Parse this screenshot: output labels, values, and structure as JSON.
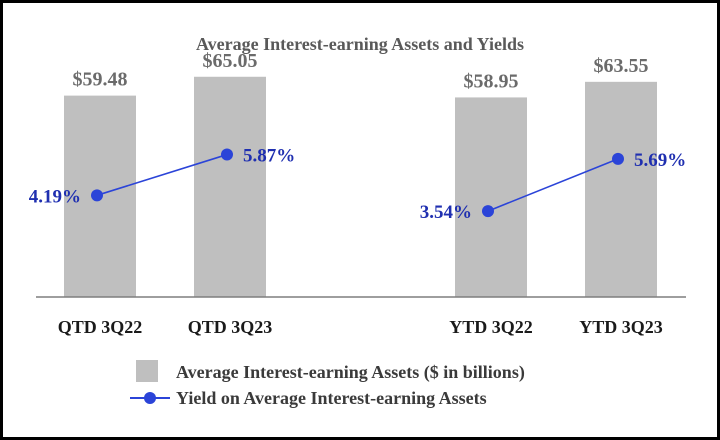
{
  "colors": {
    "bar": "#bfbfbf",
    "line": "#2b44d8",
    "line_text": "#1f2fb0",
    "axis": "#7f7f7f",
    "border": "#000000"
  },
  "chart_data": {
    "type": "bar",
    "title": "Average Interest-earning Assets and Yields",
    "categories": [
      "QTD 3Q22",
      "QTD 3Q23",
      "YTD 3Q22",
      "YTD 3Q23"
    ],
    "groups": [
      "QTD",
      "YTD"
    ],
    "ylim": [
      0,
      70
    ],
    "series": [
      {
        "name": "Average Interest-earning Assets ($ in billions)",
        "type": "bar",
        "values": [
          59.48,
          65.05,
          58.95,
          63.55
        ],
        "labels": [
          "$59.48",
          "$65.05",
          "$58.95",
          "$63.55"
        ]
      },
      {
        "name": "Yield on Average Interest-earning Assets",
        "type": "line",
        "values": [
          4.19,
          5.87,
          3.54,
          5.69
        ],
        "labels": [
          "4.19%",
          "5.87%",
          "3.54%",
          "5.69%"
        ],
        "ylim": [
          0,
          7.5
        ]
      }
    ],
    "legend": {
      "position": "bottom",
      "items": [
        "Average Interest-earning Assets ($ in billions)",
        "Yield on Average Interest-earning Assets"
      ]
    }
  }
}
